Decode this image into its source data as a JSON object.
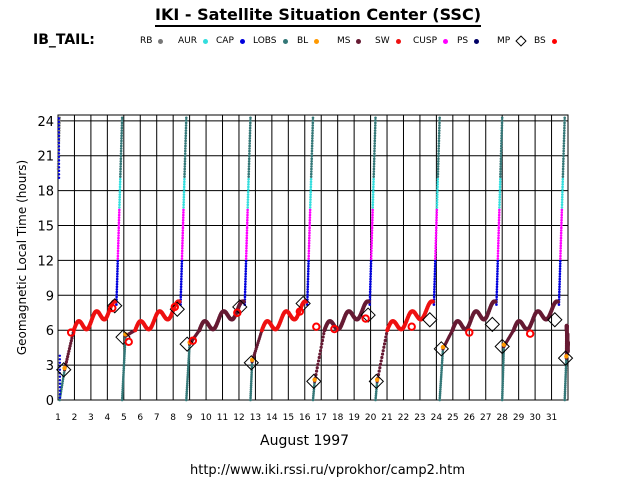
{
  "header": {
    "title": "IKI - Satellite Situation Center (SSC)",
    "mission": "IB_TAIL:"
  },
  "legend": [
    {
      "name": "RB",
      "color": "#777777",
      "shape": "dot"
    },
    {
      "name": "AUR",
      "color": "#33dddd",
      "shape": "dot"
    },
    {
      "name": "CAP",
      "color": "#0000dd",
      "shape": "dot"
    },
    {
      "name": "LOBS",
      "color": "#337777",
      "shape": "dot"
    },
    {
      "name": "BL",
      "color": "#ff9900",
      "shape": "dot"
    },
    {
      "name": "MS",
      "color": "#661a33",
      "shape": "dot"
    },
    {
      "name": "SW",
      "color": "#ee1111",
      "shape": "dot"
    },
    {
      "name": "CUSP",
      "color": "#ff00ff",
      "shape": "dot"
    },
    {
      "name": "PS",
      "color": "#000066",
      "shape": "dot"
    },
    {
      "name": "MP",
      "color": "#000000",
      "shape": "diamond"
    },
    {
      "name": "BS",
      "color": "#ff0000",
      "shape": "dot"
    }
  ],
  "footer": {
    "month": "August    1997",
    "url": "http://www.iki.rssi.ru/vprokhor/camp2.htm"
  },
  "chart_data": {
    "type": "scatter",
    "ylabel": "Geomagnetic  Local  Time  (hours)",
    "xlabel": "August 1997",
    "xlim": [
      1,
      32
    ],
    "ylim": [
      0,
      24.5
    ],
    "x_ticks": [
      "1",
      "2",
      "3",
      "4",
      "5",
      "6",
      "7",
      "8",
      "9",
      "10",
      "11",
      "12",
      "13",
      "14",
      "15",
      "16",
      "17",
      "18",
      "19",
      "20",
      "21",
      "22",
      "23",
      "24",
      "25",
      "26",
      "27",
      "28",
      "29",
      "30",
      "31"
    ],
    "y_ticks": [
      "0",
      "3",
      "6",
      "9",
      "12",
      "15",
      "18",
      "21",
      "24"
    ],
    "y_tick_values": [
      0,
      3,
      6,
      9,
      12,
      15,
      18,
      21,
      24
    ],
    "grid": true,
    "orbit_crossings": [
      1.1,
      4.9,
      8.8,
      12.7,
      16.5,
      20.3,
      24.2,
      28.0,
      31.8
    ],
    "apogee_minima": [
      {
        "x": 1.4,
        "y": 2.6
      },
      {
        "x": 5.1,
        "y": 5.5
      },
      {
        "x": 9.0,
        "y": 4.8
      },
      {
        "x": 12.8,
        "y": 3.3
      },
      {
        "x": 16.6,
        "y": 1.6
      },
      {
        "x": 20.4,
        "y": 1.6
      },
      {
        "x": 24.4,
        "y": 4.4
      },
      {
        "x": 28.1,
        "y": 4.6
      },
      {
        "x": 31.9,
        "y": 3.6
      }
    ],
    "magnetopause_crossings": [
      {
        "x": 1.35,
        "y": 2.6
      },
      {
        "x": 4.45,
        "y": 8.1
      },
      {
        "x": 4.95,
        "y": 5.4
      },
      {
        "x": 8.25,
        "y": 7.8
      },
      {
        "x": 8.85,
        "y": 4.8
      },
      {
        "x": 12.05,
        "y": 8.0
      },
      {
        "x": 12.75,
        "y": 3.2
      },
      {
        "x": 15.9,
        "y": 8.3
      },
      {
        "x": 16.55,
        "y": 1.6
      },
      {
        "x": 19.85,
        "y": 7.3
      },
      {
        "x": 20.35,
        "y": 1.6
      },
      {
        "x": 23.6,
        "y": 6.9
      },
      {
        "x": 24.3,
        "y": 4.4
      },
      {
        "x": 27.4,
        "y": 6.5
      },
      {
        "x": 28.0,
        "y": 4.6
      },
      {
        "x": 31.2,
        "y": 6.9
      },
      {
        "x": 31.85,
        "y": 3.6
      }
    ],
    "bow_shock_crossings": [
      {
        "x": 1.8,
        "y": 5.8
      },
      {
        "x": 4.3,
        "y": 7.9
      },
      {
        "x": 5.3,
        "y": 5.0
      },
      {
        "x": 8.1,
        "y": 8.0
      },
      {
        "x": 9.2,
        "y": 5.1
      },
      {
        "x": 11.9,
        "y": 7.5
      },
      {
        "x": 15.7,
        "y": 7.6
      },
      {
        "x": 16.7,
        "y": 6.3
      },
      {
        "x": 19.7,
        "y": 7.0
      },
      {
        "x": 17.8,
        "y": 6.1
      },
      {
        "x": 22.5,
        "y": 6.3
      },
      {
        "x": 26.0,
        "y": 5.8
      },
      {
        "x": 29.7,
        "y": 5.7
      }
    ]
  }
}
